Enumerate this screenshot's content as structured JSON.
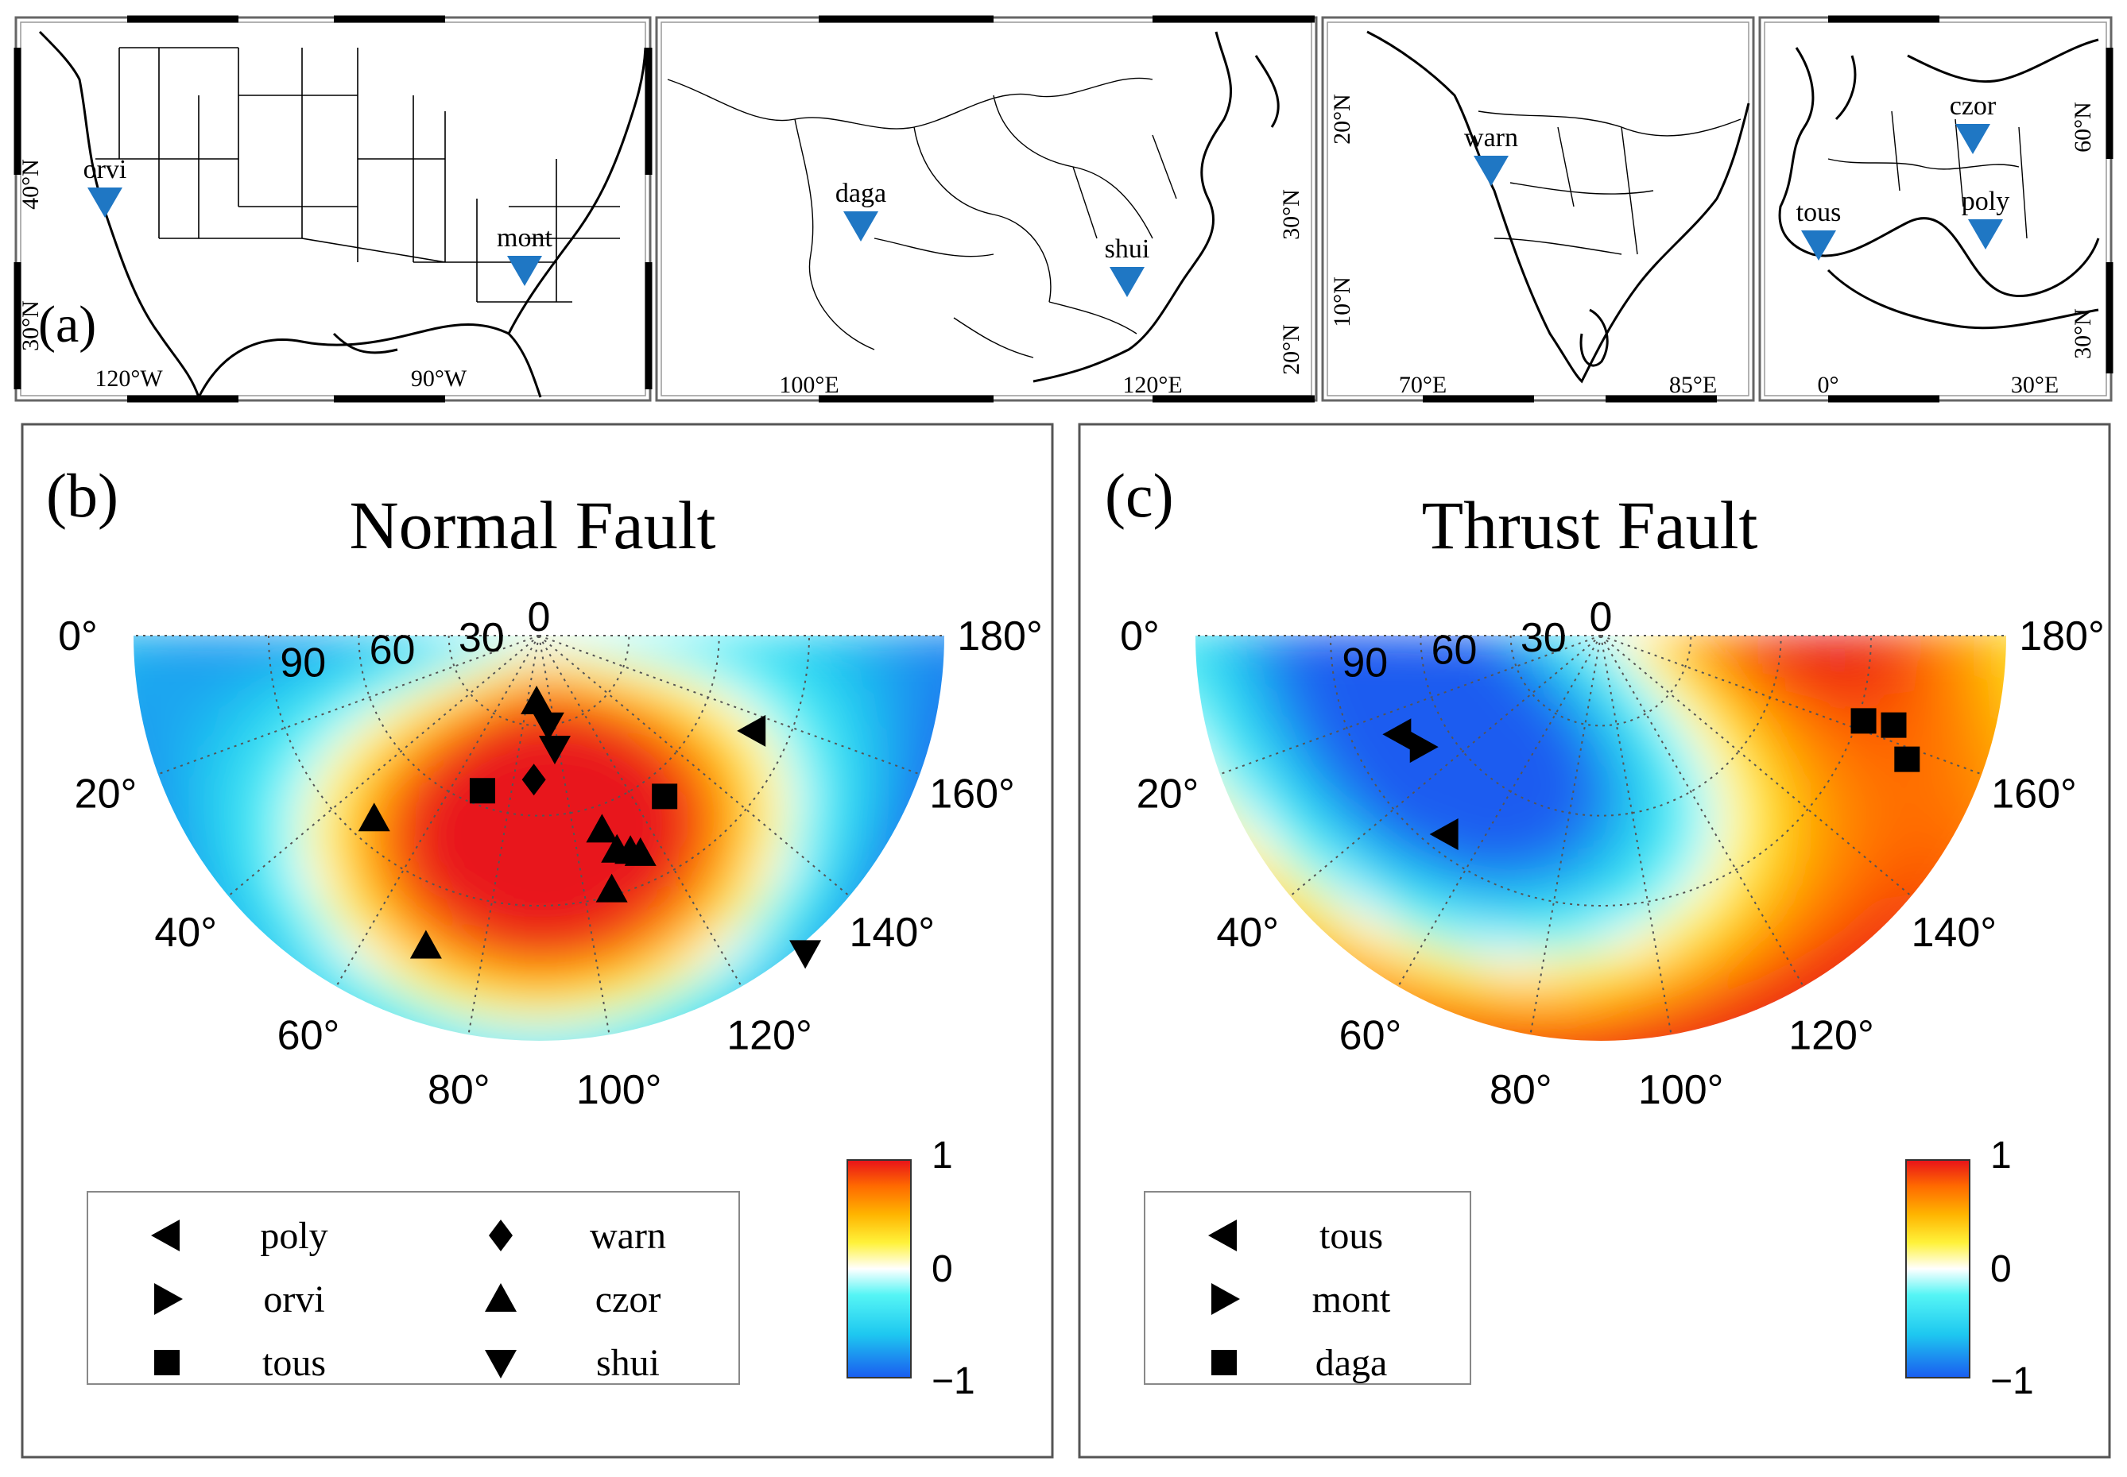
{
  "colors": {
    "station_marker": "#1f77c4",
    "land_outline": "#000000",
    "symbol_fill": "#000000",
    "colormap": [
      "#1a5cf0",
      "#1ec8f0",
      "#55f5f5",
      "#ffffff",
      "#fff23a",
      "#ffb400",
      "#ff6a00",
      "#e8121a"
    ]
  },
  "panel_a": {
    "label": "(a)",
    "maps": [
      {
        "name": "usa",
        "stations": [
          {
            "name": "orvi"
          },
          {
            "name": "mont"
          }
        ],
        "bottom_ticks": [
          "120°W",
          "90°W"
        ],
        "left_ticks": [
          "40°N",
          "30°N"
        ],
        "right_ticks": []
      },
      {
        "name": "china",
        "stations": [
          {
            "name": "daga"
          },
          {
            "name": "shui"
          }
        ],
        "bottom_ticks": [
          "100°E",
          "120°E"
        ],
        "left_ticks": [],
        "right_ticks": [
          "30°N",
          "20°N"
        ]
      },
      {
        "name": "india",
        "stations": [
          {
            "name": "warn"
          }
        ],
        "bottom_ticks": [
          "70°E",
          "85°E"
        ],
        "left_ticks": [
          "20°N",
          "10°N"
        ],
        "right_ticks": []
      },
      {
        "name": "europe",
        "stations": [
          {
            "name": "czor"
          },
          {
            "name": "tous"
          },
          {
            "name": "poly"
          }
        ],
        "bottom_ticks": [
          "0°",
          "30°E"
        ],
        "left_ticks": [],
        "right_ticks": [
          "60°N",
          "30°N"
        ]
      }
    ]
  },
  "chart_data": [
    {
      "type": "heatmap",
      "label": "(b)",
      "title": "Normal Fault",
      "azimuth_labels": [
        "0°",
        "20°",
        "40°",
        "60°",
        "80°",
        "100°",
        "120°",
        "140°",
        "160°",
        "180°"
      ],
      "incidence_labels": [
        "0",
        "30",
        "60",
        "90"
      ],
      "colorbar": {
        "ticks": [
          "1",
          "0",
          "−1"
        ],
        "range": [
          -1,
          1
        ]
      },
      "legend": [
        {
          "name": "poly",
          "symbol": "triangle-left"
        },
        {
          "name": "warn",
          "symbol": "diamond"
        },
        {
          "name": "orvi",
          "symbol": "triangle-right"
        },
        {
          "name": "czor",
          "symbol": "triangle-up"
        },
        {
          "name": "tous",
          "symbol": "square"
        },
        {
          "name": "shui",
          "symbol": "triangle-down"
        }
      ],
      "points": [
        {
          "station": "czor",
          "symbol": "triangle-up",
          "azimuth": 88,
          "incidence": 22
        },
        {
          "station": "shui",
          "symbol": "triangle-down",
          "azimuth": 96,
          "incidence": 30
        },
        {
          "station": "shui",
          "symbol": "triangle-down",
          "azimuth": 98,
          "incidence": 38
        },
        {
          "station": "poly",
          "symbol": "triangle-left",
          "azimuth": 156,
          "incidence": 78
        },
        {
          "station": "tous",
          "symbol": "square",
          "azimuth": 70,
          "incidence": 55
        },
        {
          "station": "warn",
          "symbol": "diamond",
          "azimuth": 88,
          "incidence": 48
        },
        {
          "station": "tous",
          "symbol": "square",
          "azimuth": 128,
          "incidence": 68
        },
        {
          "station": "czor",
          "symbol": "triangle-up",
          "azimuth": 48,
          "incidence": 82
        },
        {
          "station": "czor",
          "symbol": "triangle-up",
          "azimuth": 108,
          "incidence": 68
        },
        {
          "station": "czor",
          "symbol": "triangle-up",
          "azimuth": 110,
          "incidence": 76
        },
        {
          "station": "czor",
          "symbol": "triangle-up",
          "azimuth": 113,
          "incidence": 78
        },
        {
          "station": "czor",
          "symbol": "triangle-up",
          "azimuth": 115,
          "incidence": 80
        },
        {
          "station": "czor",
          "symbol": "triangle-up",
          "azimuth": 106,
          "incidence": 88
        },
        {
          "station": "czor",
          "symbol": "triangle-up",
          "azimuth": 70,
          "incidence": 110
        },
        {
          "station": "shui",
          "symbol": "triangle-down",
          "azimuth": 130,
          "incidence": 138
        }
      ]
    },
    {
      "type": "heatmap",
      "label": "(c)",
      "title": "Thrust Fault",
      "azimuth_labels": [
        "0°",
        "20°",
        "40°",
        "60°",
        "80°",
        "100°",
        "120°",
        "140°",
        "160°",
        "180°"
      ],
      "incidence_labels": [
        "0",
        "30",
        "60",
        "90"
      ],
      "colorbar": {
        "ticks": [
          "1",
          "0",
          "−1"
        ],
        "range": [
          -1,
          1
        ]
      },
      "legend": [
        {
          "name": "tous",
          "symbol": "triangle-left"
        },
        {
          "name": "mont",
          "symbol": "triangle-right"
        },
        {
          "name": "daga",
          "symbol": "square"
        }
      ],
      "points": [
        {
          "station": "tous",
          "symbol": "triangle-left",
          "azimuth": 26,
          "incidence": 75
        },
        {
          "station": "mont",
          "symbol": "triangle-right",
          "azimuth": 32,
          "incidence": 70
        },
        {
          "station": "tous",
          "symbol": "triangle-left",
          "azimuth": 52,
          "incidence": 84
        },
        {
          "station": "daga",
          "symbol": "square",
          "azimuth": 162,
          "incidence": 92
        },
        {
          "station": "daga",
          "symbol": "square",
          "azimuth": 163,
          "incidence": 102
        },
        {
          "station": "daga",
          "symbol": "square",
          "azimuth": 158,
          "incidence": 110
        }
      ]
    }
  ]
}
